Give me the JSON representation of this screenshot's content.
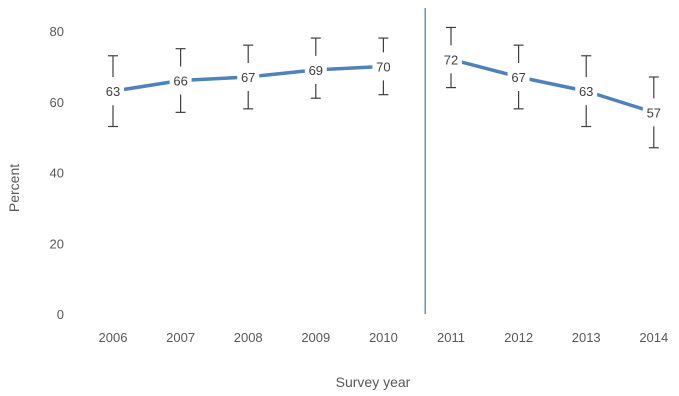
{
  "chart_data": {
    "type": "line",
    "title": "",
    "xlabel": "Survey year",
    "ylabel": "Percent",
    "ylim": [
      0,
      80
    ],
    "yticks": [
      0,
      20,
      40,
      60,
      80
    ],
    "categories": [
      "2006",
      "2007",
      "2008",
      "2009",
      "2010",
      "2011",
      "2012",
      "2013",
      "2014"
    ],
    "series": [
      {
        "values": [
          63,
          66,
          67,
          69,
          70,
          72,
          67,
          63,
          57
        ],
        "error_upper": [
          73,
          75,
          76,
          78,
          78,
          81,
          76,
          73,
          67
        ],
        "error_lower": [
          53,
          57,
          58,
          61,
          62,
          64,
          58,
          53,
          47
        ],
        "segments": [
          [
            0,
            4
          ],
          [
            5,
            8
          ]
        ],
        "color": "#4f81bd"
      }
    ],
    "divider_between": [
      "2010",
      "2011"
    ],
    "divider_color": "#4f81bd",
    "grid": false,
    "legend": "none"
  }
}
